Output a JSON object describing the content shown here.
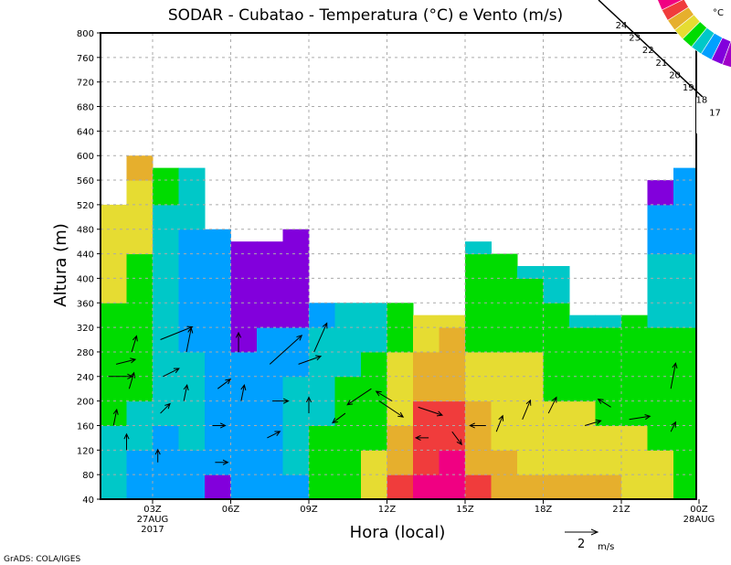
{
  "chart_data": {
    "type": "heatmap",
    "title": "SODAR - Cubatao - Temperatura (°C) e Vento (m/s)",
    "xlabel": "Hora (local)",
    "ylabel": "Altura (m)",
    "credit": "GrADS: COLA/IGES",
    "xlim_hours": [
      1,
      24
    ],
    "ylim": [
      40,
      800
    ],
    "yticks": [
      40,
      80,
      120,
      160,
      200,
      240,
      280,
      320,
      360,
      400,
      440,
      480,
      520,
      560,
      600,
      640,
      680,
      720,
      760,
      800
    ],
    "xticks": [
      {
        "hour": 3,
        "label": "03Z",
        "sub1": "27AUG",
        "sub2": "2017"
      },
      {
        "hour": 6,
        "label": "06Z"
      },
      {
        "hour": 9,
        "label": "09Z"
      },
      {
        "hour": 12,
        "label": "12Z"
      },
      {
        "hour": 15,
        "label": "15Z"
      },
      {
        "hour": 18,
        "label": "18Z"
      },
      {
        "hour": 21,
        "label": "21Z"
      },
      {
        "hour": 24,
        "label": "00Z",
        "sub1": "28AUG"
      }
    ],
    "grid": true,
    "colorbar": {
      "unit": "°C",
      "levels": [
        17,
        18,
        19,
        20,
        21,
        22,
        23,
        24
      ],
      "colors": [
        "#a000c8",
        "#8200dc",
        "#00a0ff",
        "#00c8c8",
        "#00dc00",
        "#e6dc32",
        "#e6af2d",
        "#f03c3c",
        "#f00082"
      ]
    },
    "grid_rows_bottom_heights_step": 40,
    "column_tops_m": [
      520,
      600,
      580,
      580,
      480,
      460,
      460,
      480,
      360,
      360,
      360,
      360,
      340,
      340,
      460,
      440,
      420,
      420,
      340,
      340,
      340,
      560,
      580
    ],
    "temperature_columns": [
      [
        19.5,
        19.5,
        19.5,
        20.5,
        20.5,
        20.5,
        20.5,
        20.5,
        21.5,
        21.5,
        21.5,
        21.5
      ],
      [
        18.5,
        18.5,
        19.5,
        19.5,
        20.5,
        20.5,
        20.5,
        20.5,
        20.5,
        20.5,
        21.5,
        21.5,
        21.5,
        22.5
      ],
      [
        18.5,
        18.5,
        18.5,
        19.5,
        19.5,
        19.5,
        19.5,
        19.5,
        19.5,
        19.5,
        19.5,
        19.5,
        20.5,
        20.5
      ],
      [
        18.5,
        18.5,
        19.5,
        19.5,
        19.5,
        19.5,
        18.5,
        18.5,
        18.5,
        18.5,
        18.5,
        19.5,
        19.5,
        19.5
      ],
      [
        17.5,
        18.5,
        18.5,
        18.5,
        18.5,
        18.5,
        18.5,
        18.5,
        18.5,
        18.5,
        18.5
      ],
      [
        18.5,
        18.5,
        18.5,
        18.5,
        18.5,
        18.5,
        17.5,
        17.5,
        17.5,
        17.5,
        17.5
      ],
      [
        18.5,
        18.5,
        18.5,
        18.5,
        18.5,
        18.5,
        18.5,
        17.5,
        17.5,
        17.5,
        17.5
      ],
      [
        18.5,
        19.5,
        19.5,
        19.5,
        19.5,
        18.5,
        18.5,
        17.5,
        17.5,
        17.5,
        17.5
      ],
      [
        20.5,
        20.5,
        20.5,
        19.5,
        19.5,
        19.5,
        19.5,
        18.5
      ],
      [
        20.5,
        20.5,
        20.5,
        20.5,
        20.5,
        19.5,
        19.5,
        19.5
      ],
      [
        21.5,
        21.5,
        20.5,
        20.5,
        20.5,
        20.5,
        19.5,
        19.5
      ],
      [
        23.5,
        22.5,
        22.5,
        21.5,
        21.5,
        21.5,
        20.5,
        20.5
      ],
      [
        24.5,
        23.5,
        23.5,
        23.5,
        22.5,
        22.5,
        21.5,
        21.5
      ],
      [
        24.5,
        24.5,
        23.5,
        23.5,
        22.5,
        22.5,
        22.5,
        21.5
      ],
      [
        23.5,
        22.5,
        22.5,
        22.5,
        21.5,
        21.5,
        20.5,
        20.5,
        20.5,
        20.5,
        19.5
      ],
      [
        22.5,
        22.5,
        21.5,
        21.5,
        21.5,
        21.5,
        20.5,
        20.5,
        20.5,
        20.5
      ],
      [
        22.5,
        21.5,
        21.5,
        21.5,
        21.5,
        21.5,
        20.5,
        20.5,
        20.5,
        19.5
      ],
      [
        22.5,
        21.5,
        21.5,
        21.5,
        20.5,
        20.5,
        20.5,
        20.5,
        19.5,
        19.5
      ],
      [
        22.5,
        21.5,
        21.5,
        21.5,
        20.5,
        20.5,
        20.5,
        19.5
      ],
      [
        22.5,
        21.5,
        21.5,
        20.5,
        20.5,
        20.5,
        20.5,
        19.5
      ],
      [
        21.5,
        21.5,
        21.5,
        20.5,
        20.5,
        20.5,
        20.5,
        20.5
      ],
      [
        21.5,
        21.5,
        20.5,
        20.5,
        20.5,
        20.5,
        20.5,
        19.5,
        19.5,
        19.5,
        18.5,
        18.5,
        17.5,
        17.5
      ],
      [
        20.5,
        20.5,
        20.5,
        20.5,
        20.5,
        20.5,
        20.5,
        19.5,
        19.5,
        19.5,
        18.5,
        18.5,
        18.5,
        18.5,
        17.5
      ]
    ],
    "wind_vectors_hour_height_u_v": [
      [
        1.3,
        240,
        1.5,
        0
      ],
      [
        1.6,
        260,
        1.2,
        0.3
      ],
      [
        2.1,
        220,
        0.3,
        1
      ],
      [
        2.2,
        280,
        0.3,
        1
      ],
      [
        1.5,
        160,
        0.2,
        1
      ],
      [
        2.0,
        120,
        0,
        1
      ],
      [
        3.3,
        300,
        2,
        0.8
      ],
      [
        3.4,
        240,
        1,
        0.5
      ],
      [
        3.3,
        180,
        0.6,
        0.6
      ],
      [
        3.2,
        100,
        0,
        0.8
      ],
      [
        4.3,
        280,
        0.3,
        1.5
      ],
      [
        4.2,
        200,
        0.2,
        1
      ],
      [
        5.5,
        220,
        0.8,
        0.6
      ],
      [
        5.3,
        160,
        0.8,
        0
      ],
      [
        5.4,
        100,
        0.8,
        0
      ],
      [
        6.3,
        280,
        0,
        1.2
      ],
      [
        6.4,
        200,
        0.2,
        1
      ],
      [
        7.5,
        260,
        2,
        1.8
      ],
      [
        7.6,
        200,
        1,
        0
      ],
      [
        7.4,
        140,
        0.8,
        0.4
      ],
      [
        8.6,
        260,
        1.4,
        0.5
      ],
      [
        9.2,
        280,
        0.8,
        1.8
      ],
      [
        9.0,
        180,
        0,
        1
      ],
      [
        10.4,
        180,
        -0.8,
        -0.6
      ],
      [
        11.4,
        220,
        -1.5,
        -1
      ],
      [
        11.7,
        200,
        1.5,
        -1
      ],
      [
        12.2,
        200,
        -1,
        0.6
      ],
      [
        13.2,
        190,
        1.5,
        -0.5
      ],
      [
        13.6,
        140,
        -0.8,
        0
      ],
      [
        14.5,
        150,
        0.6,
        -0.8
      ],
      [
        15.8,
        160,
        -1,
        0
      ],
      [
        16.2,
        150,
        0.4,
        1
      ],
      [
        17.2,
        170,
        0.5,
        1.2
      ],
      [
        18.2,
        180,
        0.5,
        1
      ],
      [
        19.6,
        160,
        1,
        0.3
      ],
      [
        20.6,
        190,
        -0.8,
        0.5
      ],
      [
        21.3,
        170,
        1.3,
        0.2
      ],
      [
        22.9,
        220,
        0.3,
        1.6
      ],
      [
        22.9,
        150,
        0.3,
        0.6
      ]
    ],
    "reference_vector": {
      "speed": 2,
      "label": "2",
      "unit": "m/s"
    }
  }
}
